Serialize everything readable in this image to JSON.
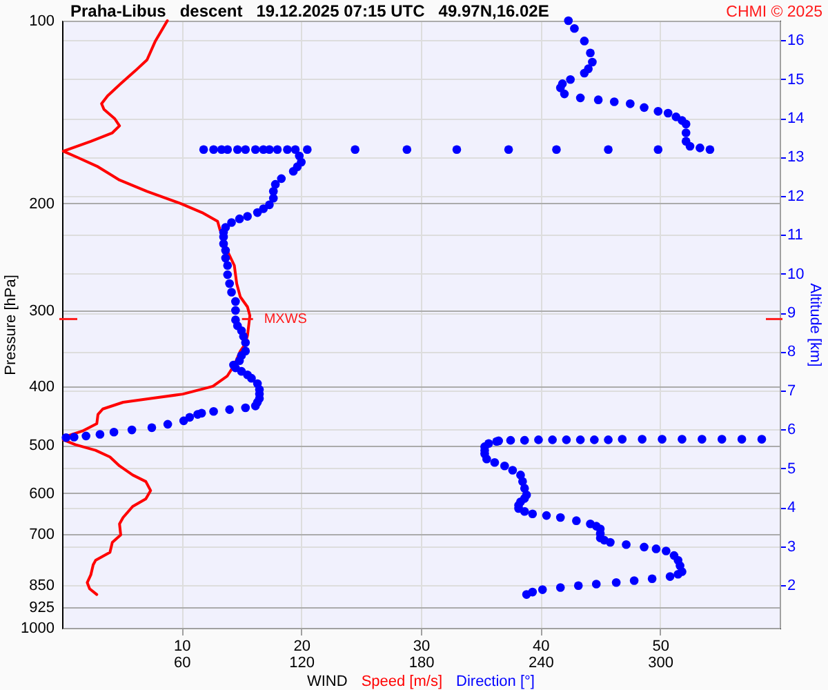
{
  "chart_data": {
    "type": "line",
    "title": "Praha-Libus   descent   19.12.2025 07:15 UTC   49.97N,16.02E",
    "xlabel": "WIND",
    "ylabel": "Pressure [hPa]",
    "y2label": "Altitude [km]",
    "annotations": [
      "CHMI © 2025",
      {
        "text": "MXWS",
        "x": 15.5,
        "y": 310
      }
    ],
    "series": [
      {
        "name": "Speed [m/s]",
        "color": "#ff0000",
        "x": [
          8.8,
          7.8,
          7.1,
          6.1,
          4.9,
          3.8,
          3.3,
          3.5,
          4.4,
          4.8,
          4.2,
          2.4,
          0.1,
          1.3,
          3,
          4.8,
          7.1,
          9.9,
          11.7,
          13,
          13.2,
          13.4,
          13.8,
          14.4,
          14.6,
          14.9,
          15.5,
          15.7,
          15.6,
          15.5,
          15.3,
          14.9,
          14.4,
          13.8,
          12.6,
          10.1,
          7.4,
          5.1,
          3.4,
          3,
          2.9,
          1.7,
          0.3,
          0.1,
          1.1,
          2.8,
          4,
          4.8,
          5.9,
          7,
          7.4,
          7,
          5.9,
          5.1,
          4.8,
          4.9,
          4.2,
          4,
          2.8,
          2.6,
          2.4,
          2.1,
          2.3,
          2.9
        ],
        "values": [
          100,
          108,
          116,
          121,
          127,
          133,
          137,
          140,
          145,
          149,
          153,
          158,
          164,
          168,
          174,
          183,
          191,
          200,
          207,
          214,
          221,
          225,
          239,
          253,
          271,
          285,
          296,
          306,
          318,
          330,
          341,
          350,
          369,
          385,
          400,
          412,
          419,
          425,
          436,
          445,
          461,
          474,
          484,
          490,
          499,
          510,
          523,
          541,
          560,
          574,
          594,
          613,
          631,
          658,
          674,
          703,
          723,
          751,
          774,
          787,
          818,
          842,
          862,
          881
        ]
      },
      {
        "name": "Direction [°]",
        "color": "#0000ff",
        "type": "scatter",
        "axis": "x2",
        "marker": "circle",
        "x": [
          254,
          257,
          262,
          265,
          266,
          264,
          262,
          255,
          251,
          250,
          252,
          260,
          269,
          277,
          285,
          292,
          299,
          304,
          308,
          311,
          313,
          313,
          313,
          315,
          320,
          325,
          299,
          274,
          248,
          224,
          198,
          173,
          147,
          123,
          117,
          113,
          108,
          104,
          101,
          97,
          92,
          88,
          83,
          80,
          76,
          71,
          119,
          120,
          118,
          116,
          110,
          107,
          106,
          106,
          104,
          101,
          98,
          93,
          89,
          85,
          82,
          81,
          81,
          81,
          82,
          82,
          83,
          83,
          84,
          85,
          87,
          87,
          87,
          88,
          90,
          91,
          92,
          92,
          90,
          89,
          86,
          87,
          90,
          93,
          95,
          98,
          99,
          99,
          99,
          98,
          97,
          92,
          84,
          76,
          70,
          68,
          64,
          61,
          53,
          45,
          35,
          26,
          19,
          12,
          6,
          2,
          351,
          341,
          331,
          321,
          311,
          301,
          291,
          281,
          274,
          267,
          260,
          253,
          246,
          239,
          232,
          225,
          219,
          218,
          214,
          212,
          212,
          212,
          213,
          217,
          222,
          226,
          230,
          231,
          232,
          233,
          232,
          230,
          229,
          229,
          232,
          236,
          243,
          250,
          258,
          265,
          268,
          270,
          270,
          270,
          272,
          275,
          283,
          292,
          298,
          303,
          307,
          309,
          310,
          311,
          309,
          305,
          296,
          287,
          278,
          268,
          259,
          250,
          241,
          236,
          233
        ],
        "values": [
          100,
          103,
          108,
          113,
          117,
          120,
          122,
          125,
          127,
          129,
          132,
          134,
          135,
          136,
          137,
          139,
          141,
          142,
          144,
          146,
          148,
          153,
          158,
          161,
          162,
          163,
          163,
          163,
          163,
          163,
          163,
          163,
          163,
          163,
          163,
          163,
          163,
          163,
          163,
          163,
          163,
          163,
          163,
          163,
          163,
          163,
          167,
          171,
          174,
          177,
          182,
          186,
          191,
          196,
          201,
          204,
          207,
          210,
          212,
          215,
          219,
          223,
          227,
          233,
          239,
          246,
          253,
          262,
          271,
          280,
          290,
          300,
          311,
          318,
          324,
          331,
          339,
          350,
          356,
          363,
          369,
          373,
          378,
          383,
          388,
          396,
          405,
          412,
          419,
          425,
          431,
          434,
          437,
          440,
          443,
          445,
          450,
          456,
          462,
          468,
          472,
          476,
          480,
          483,
          485,
          486,
          489,
          489,
          489,
          489,
          489,
          489,
          489,
          489,
          490,
          490,
          490,
          490,
          490,
          490,
          491,
          491,
          492,
          493,
          497,
          503,
          510,
          517,
          527,
          534,
          541,
          550,
          560,
          574,
          589,
          604,
          612,
          620,
          628,
          636,
          643,
          649,
          653,
          658,
          666,
          674,
          680,
          687,
          699,
          711,
          717,
          723,
          729,
          736,
          741,
          747,
          760,
          774,
          790,
          808,
          816,
          823,
          830,
          836,
          842,
          847,
          852,
          858,
          865,
          873,
          881
        ]
      }
    ],
    "xlim": [
      0,
      60
    ],
    "xticks": [
      10,
      20,
      30,
      40,
      50
    ],
    "x2lim": [
      0,
      360
    ],
    "x2ticks": [
      60,
      120,
      180,
      240,
      300
    ],
    "ylim": [
      1000,
      100
    ],
    "yticks": [
      100,
      200,
      300,
      400,
      500,
      600,
      700,
      850,
      925,
      1000
    ],
    "y2lim": [
      0.9,
      16.5
    ],
    "y2ticks": [
      2,
      3,
      4,
      5,
      6,
      7,
      8,
      9,
      10,
      11,
      12,
      13,
      14,
      15,
      16
    ],
    "log": "y",
    "grid": true,
    "legend": "bottom"
  }
}
